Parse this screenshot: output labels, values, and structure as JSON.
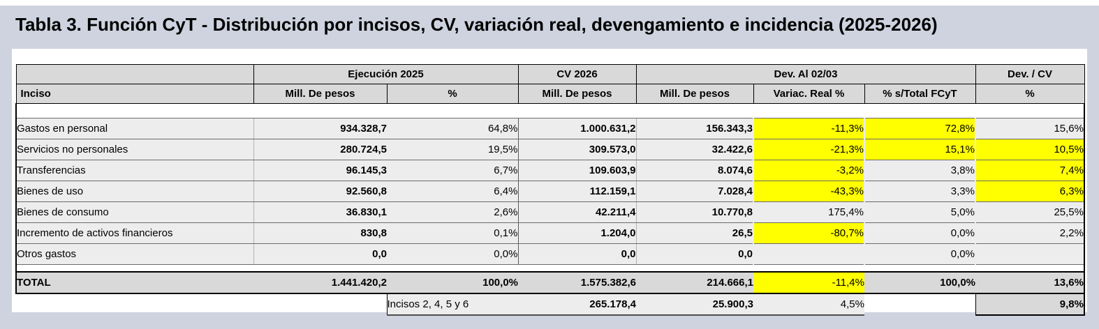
{
  "title": "Tabla 3. Función CyT - Distribución por incisos, CV, variación real, devengamiento e incidencia (2025-2026)",
  "colors": {
    "highlight": "#FFFF00",
    "header_bg": "#D9D9D9",
    "row_bg": "#EDEDED",
    "total_bg": "#D9D9D9",
    "band_bg": "#CED3DF"
  },
  "table": {
    "col_groups": [
      {
        "label": "",
        "span": 1
      },
      {
        "label": "Ejecución 2025",
        "span": 2
      },
      {
        "label": "CV 2026",
        "span": 1
      },
      {
        "label": "Dev. Al 02/03",
        "span": 3
      },
      {
        "label": "Dev. / CV",
        "span": 1
      }
    ],
    "columns": [
      "Inciso",
      "Mill. De pesos",
      "%",
      "Mill. De pesos",
      "Mill. De pesos",
      "Variac. Real %",
      "% s/Total FCyT",
      "%"
    ],
    "rows": [
      {
        "inciso": "Gastos en personal",
        "ejec_mill": "934.328,7",
        "ejec_pct": "64,8%",
        "cv_mill": "1.000.631,2",
        "dev_mill": "156.343,3",
        "variac": "-11,3%",
        "s_total": "72,8%",
        "dev_cv": "15,6%",
        "hl": {
          "variac": true,
          "s_total": true,
          "dev_cv": false
        }
      },
      {
        "inciso": "Servicios no personales",
        "ejec_mill": "280.724,5",
        "ejec_pct": "19,5%",
        "cv_mill": "309.573,0",
        "dev_mill": "32.422,6",
        "variac": "-21,3%",
        "s_total": "15,1%",
        "dev_cv": "10,5%",
        "hl": {
          "variac": true,
          "s_total": true,
          "dev_cv": true
        }
      },
      {
        "inciso": "Transferencias",
        "ejec_mill": "96.145,3",
        "ejec_pct": "6,7%",
        "cv_mill": "109.603,9",
        "dev_mill": "8.074,6",
        "variac": "-3,2%",
        "s_total": "3,8%",
        "dev_cv": "7,4%",
        "hl": {
          "variac": true,
          "s_total": false,
          "dev_cv": true
        }
      },
      {
        "inciso": "Bienes de uso",
        "ejec_mill": "92.560,8",
        "ejec_pct": "6,4%",
        "cv_mill": "112.159,1",
        "dev_mill": "7.028,4",
        "variac": "-43,3%",
        "s_total": "3,3%",
        "dev_cv": "6,3%",
        "hl": {
          "variac": true,
          "s_total": false,
          "dev_cv": true
        }
      },
      {
        "inciso": "Bienes de consumo",
        "ejec_mill": "36.830,1",
        "ejec_pct": "2,6%",
        "cv_mill": "42.211,4",
        "dev_mill": "10.770,8",
        "variac": "175,4%",
        "s_total": "5,0%",
        "dev_cv": "25,5%",
        "hl": {
          "variac": false,
          "s_total": false,
          "dev_cv": false
        }
      },
      {
        "inciso": "Incremento de activos financieros",
        "ejec_mill": "830,8",
        "ejec_pct": "0,1%",
        "cv_mill": "1.204,0",
        "dev_mill": "26,5",
        "variac": "-80,7%",
        "s_total": "0,0%",
        "dev_cv": "2,2%",
        "hl": {
          "variac": true,
          "s_total": false,
          "dev_cv": false
        }
      },
      {
        "inciso": "Otros gastos",
        "ejec_mill": "0,0",
        "ejec_pct": "0,0%",
        "cv_mill": "0,0",
        "dev_mill": "0,0",
        "variac": "",
        "s_total": "0,0%",
        "dev_cv": "",
        "hl": {
          "variac": false,
          "s_total": false,
          "dev_cv": false
        }
      }
    ],
    "total_row": {
      "inciso": "TOTAL",
      "ejec_mill": "1.441.420,2",
      "ejec_pct": "100,0%",
      "cv_mill": "1.575.382,6",
      "dev_mill": "214.666,1",
      "variac": "-11,4%",
      "s_total": "100,0%",
      "dev_cv": "13,6%",
      "hl": {
        "variac": true,
        "s_total": false,
        "dev_cv": false
      }
    },
    "footer_row": {
      "label": "Incisos 2, 4, 5 y 6",
      "cv_mill": "265.178,4",
      "dev_mill": "25.900,3",
      "variac": "4,5%",
      "dev_cv": "9,8%"
    }
  }
}
